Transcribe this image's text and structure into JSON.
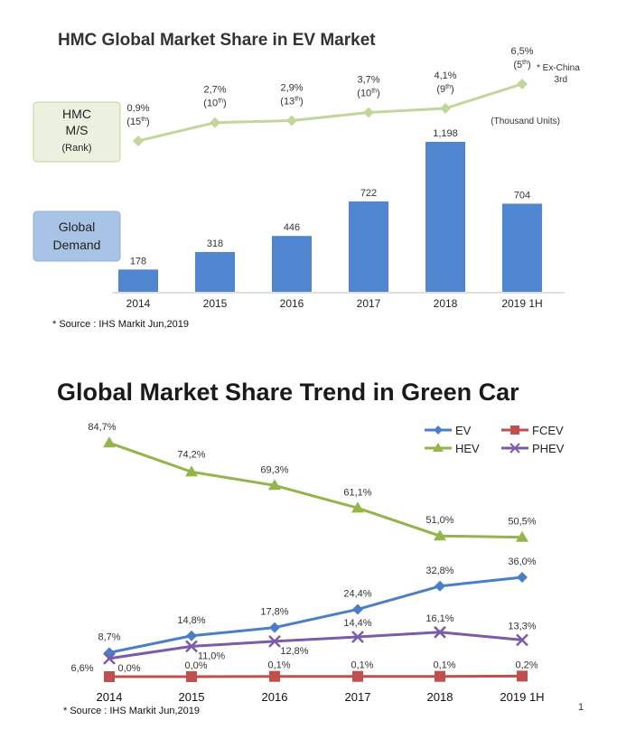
{
  "colors": {
    "bar": "#4f86cf",
    "ms_line": "#c2d69b",
    "ms_box": "#ebf1de",
    "ms_box_border": "#c2d69b",
    "demand_box": "#a7c3e6",
    "ev": "#4a7fc7",
    "hev": "#93b54a",
    "fcev": "#c0504d",
    "phev": "#7a5ca8"
  },
  "chart_data": [
    {
      "type": "bar",
      "title": "HMC Global Market Share in EV Market",
      "unit_note": "(Thousand Units)",
      "categories": [
        "2014",
        "2015",
        "2016",
        "2017",
        "2018",
        "2019 1H"
      ],
      "values": [
        178,
        318,
        446,
        722,
        1198,
        704
      ],
      "value_labels": [
        "178",
        "318",
        "446",
        "722",
        "1,198",
        "704"
      ],
      "ylim": [
        0,
        1300
      ],
      "series_label_lines": [
        "Global",
        "Demand"
      ],
      "overlay_line": {
        "label_lines": [
          "HMC",
          "M/S",
          "(Rank)"
        ],
        "values": [
          0.9,
          2.7,
          2.9,
          3.7,
          4.1,
          6.5
        ],
        "share_labels": [
          "0,9%",
          "2,7%",
          "2,9%",
          "3,7%",
          "4,1%",
          "6,5%"
        ],
        "rank_labels": [
          [
            "(15",
            "th",
            ")"
          ],
          [
            "(10",
            "th",
            ")"
          ],
          [
            "(13",
            "th",
            ")"
          ],
          [
            "(10",
            "th",
            ")"
          ],
          [
            "(9",
            "th",
            ")"
          ],
          [
            "(5",
            "th",
            ")"
          ]
        ],
        "ylim": [
          0,
          7
        ],
        "annotation_lines": [
          "* Ex-China",
          "3rd"
        ]
      },
      "source": "* Source : IHS Markit Jun,2019"
    },
    {
      "type": "line",
      "title": "Global Market Share Trend in Green Car",
      "categories": [
        "2014",
        "2015",
        "2016",
        "2017",
        "2018",
        "2019 1H"
      ],
      "ylim": [
        0,
        90
      ],
      "series": [
        {
          "name": "EV",
          "values": [
            8.7,
            14.8,
            17.8,
            24.4,
            32.8,
            36.0
          ],
          "labels": [
            "8,7%",
            "14,8%",
            "17,8%",
            "24,4%",
            "32,8%",
            "36,0%"
          ],
          "marker": "diamond",
          "color_key": "ev"
        },
        {
          "name": "HEV",
          "values": [
            84.7,
            74.2,
            69.3,
            61.1,
            51.0,
            50.5
          ],
          "labels": [
            "84,7%",
            "74,2%",
            "69,3%",
            "61,1%",
            "51,0%",
            "50,5%"
          ],
          "marker": "triangle",
          "color_key": "hev"
        },
        {
          "name": "FCEV",
          "values": [
            0.0,
            0.0,
            0.1,
            0.1,
            0.1,
            0.2
          ],
          "labels": [
            "0,0%",
            "0,0%",
            "0,1%",
            "0,1%",
            "0,1%",
            "0,2%"
          ],
          "marker": "square",
          "color_key": "fcev"
        },
        {
          "name": "PHEV",
          "values": [
            6.6,
            11.0,
            12.8,
            14.4,
            16.1,
            13.3
          ],
          "labels": [
            "6,6%",
            "11,0%",
            "12,8%",
            "14,4%",
            "16,1%",
            "13,3%"
          ],
          "marker": "x",
          "color_key": "phev"
        }
      ],
      "legend_position": "top-right",
      "source": "* Source : IHS Markit Jun,2019"
    }
  ],
  "page_number": "1"
}
